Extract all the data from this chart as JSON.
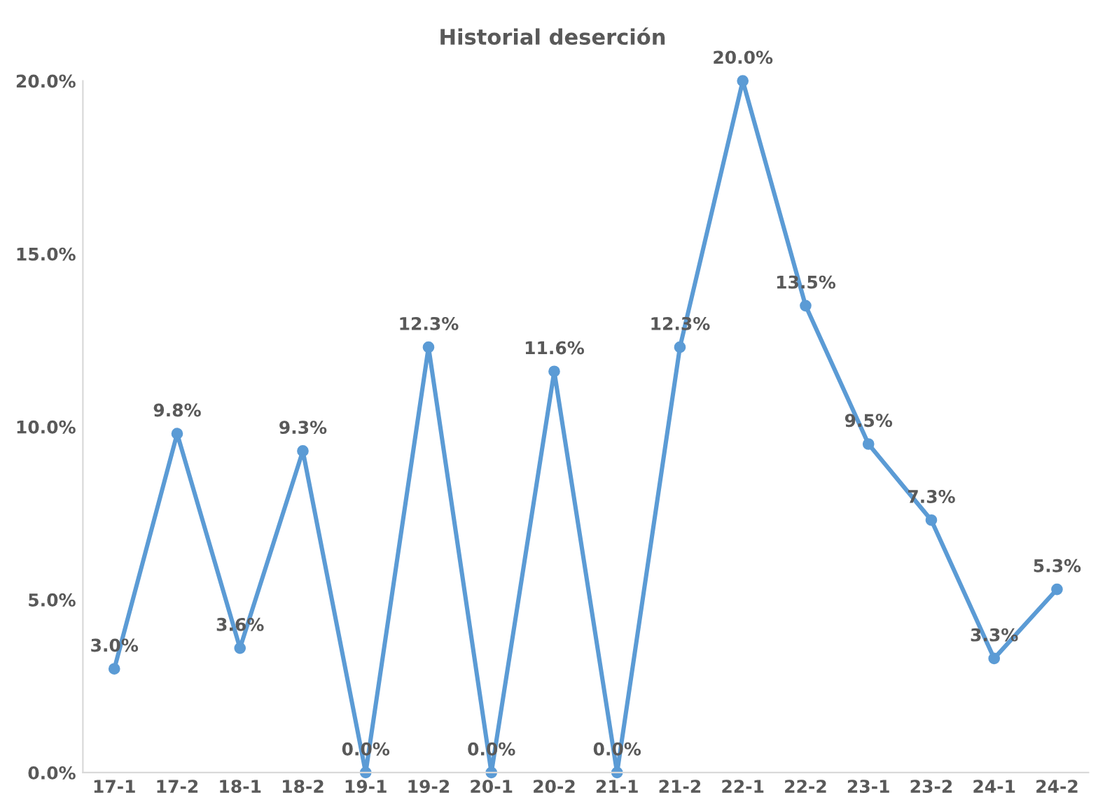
{
  "chart_data": {
    "type": "line",
    "title": "Historial deserción",
    "categories": [
      "17-1",
      "17-2",
      "18-1",
      "18-2",
      "19-1",
      "19-2",
      "20-1",
      "20-2",
      "21-1",
      "21-2",
      "22-1",
      "22-2",
      "23-1",
      "23-2",
      "24-1",
      "24-2"
    ],
    "series": [
      {
        "color": "#5b9bd5",
        "values": [
          3.0,
          9.8,
          3.6,
          9.3,
          0.0,
          12.3,
          0.0,
          11.6,
          0.0,
          12.3,
          20.0,
          13.5,
          9.5,
          7.3,
          3.3,
          5.3
        ],
        "value_labels": [
          "3.0%",
          "9.8%",
          "3.6%",
          "9.3%",
          "0.0%",
          "12.3%",
          "0.0%",
          "11.6%",
          "0.0%",
          "12.3%",
          "20.0%",
          "13.5%",
          "9.5%",
          "7.3%",
          "3.3%",
          "5.3%"
        ]
      }
    ],
    "ylim": [
      0,
      20
    ],
    "yticks": [
      {
        "value": 0,
        "label": "0.0%"
      },
      {
        "value": 5,
        "label": "5.0%"
      },
      {
        "value": 10,
        "label": "10.0%"
      },
      {
        "value": 15,
        "label": "15.0%"
      },
      {
        "value": 20,
        "label": "20.0%"
      }
    ],
    "grid": false,
    "legend": false,
    "marker": "circle",
    "line_style": "solid"
  }
}
